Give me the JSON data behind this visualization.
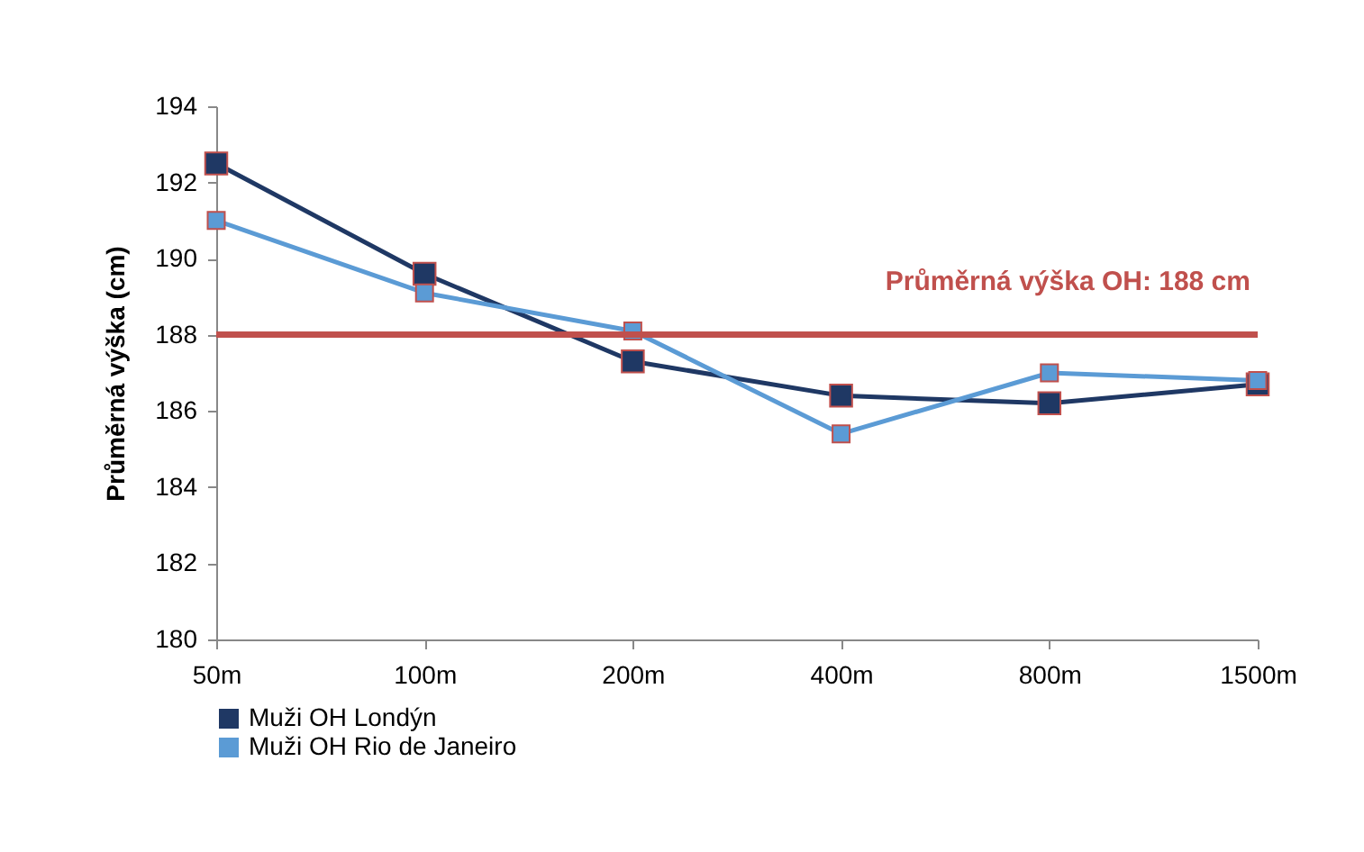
{
  "chart_data": {
    "type": "line",
    "ylabel": "Průměrná výška (cm)",
    "categories": [
      "50m",
      "100m",
      "200m",
      "400m",
      "800m",
      "1500m"
    ],
    "series": [
      {
        "name": "Muži OH Londýn",
        "color": "#1f3864",
        "values": [
          192.5,
          189.6,
          187.3,
          186.4,
          186.2,
          186.7
        ]
      },
      {
        "name": "Muži OH Rio de Janeiro",
        "color": "#5b9bd5",
        "values": [
          191.0,
          189.1,
          188.1,
          185.4,
          187.0,
          186.8
        ]
      }
    ],
    "ylim": [
      180,
      194
    ],
    "yticks": [
      180,
      182,
      184,
      186,
      188,
      190,
      192,
      194
    ],
    "grid": false,
    "legend": "bottom",
    "marker": "square",
    "line_style": "solid",
    "ref_lines": [
      {
        "axis": "y",
        "value": 188,
        "label": "Průměrná výška OH: 188 cm",
        "color": "#c0504d"
      }
    ]
  }
}
